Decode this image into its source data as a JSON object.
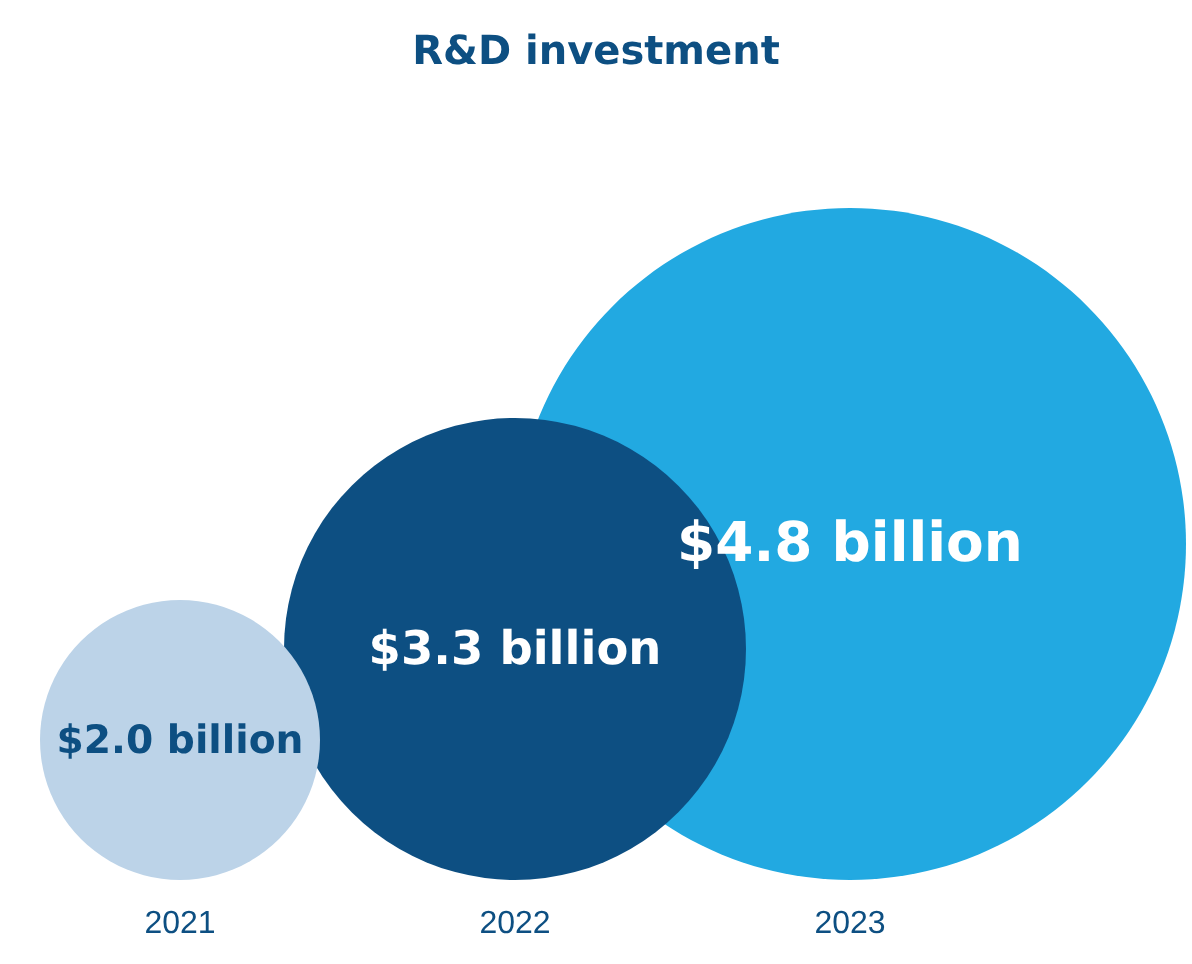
{
  "chart_data": {
    "type": "other",
    "title": "R&D investment",
    "categories": [
      "2021",
      "2022",
      "2023"
    ],
    "values": [
      2.0,
      3.3,
      4.8
    ],
    "colors": [
      "#bcd3e8",
      "#0d4f82",
      "#22a9e1"
    ],
    "value_labels": [
      "$2.0 billion",
      "$3.3 billion",
      "$4.8 billion"
    ]
  }
}
